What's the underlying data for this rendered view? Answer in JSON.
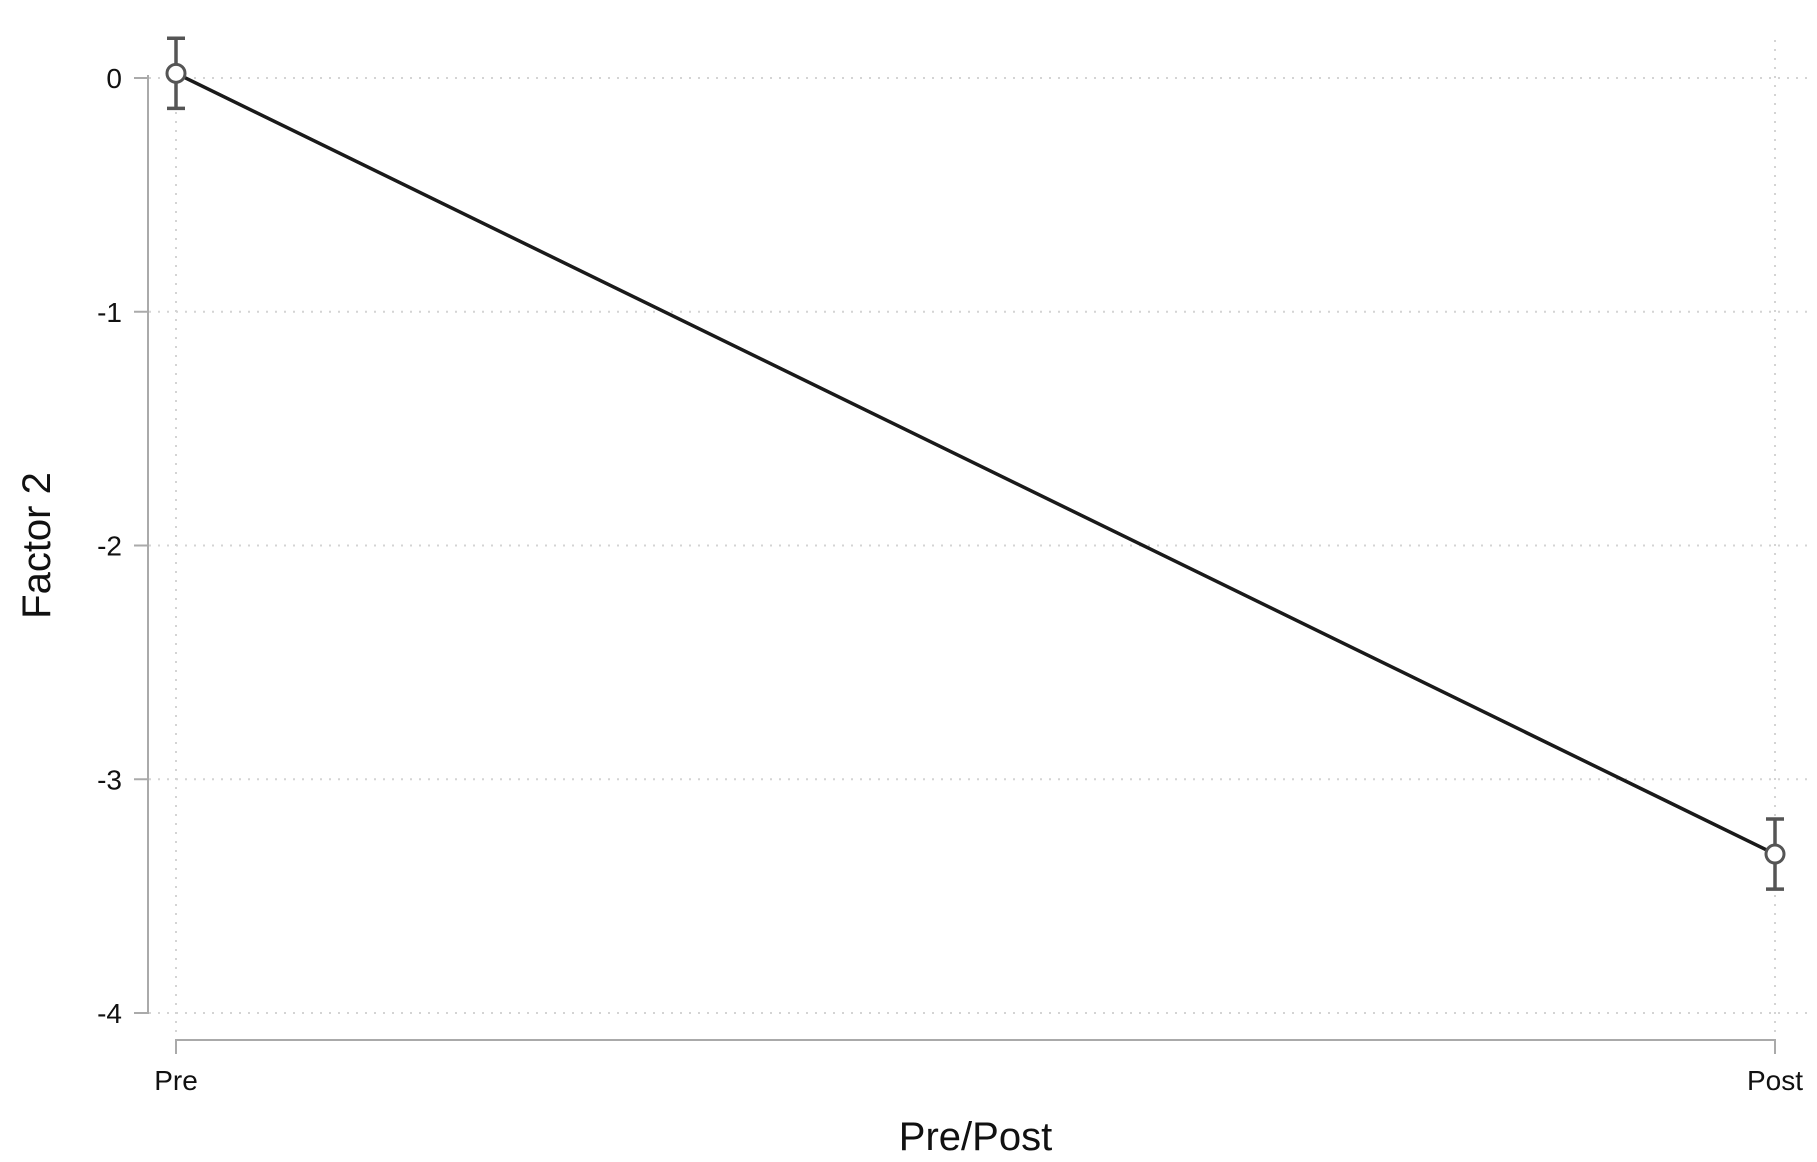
{
  "chart_data": {
    "type": "line",
    "categories": [
      "Pre",
      "Post"
    ],
    "series": [
      {
        "values": [
          0.02,
          -3.32
        ],
        "ci_lower": [
          -0.13,
          -3.47
        ],
        "ci_upper": [
          0.17,
          -3.17
        ]
      }
    ],
    "xlabel": "Pre/Post",
    "ylabel": "Factor 2",
    "yticks": [
      0,
      -1,
      -2,
      -3,
      -4
    ],
    "ytick_labels": [
      "0",
      "-1",
      "-2",
      "-3",
      "-4"
    ],
    "ylim": [
      -4,
      0
    ],
    "grid": true,
    "legend": "none",
    "colors": {
      "line": "#1a1a1a",
      "marker": "#555555",
      "errorbar": "#555555",
      "axis": "#aaaaaa",
      "grid": "#d4d4d4"
    }
  }
}
